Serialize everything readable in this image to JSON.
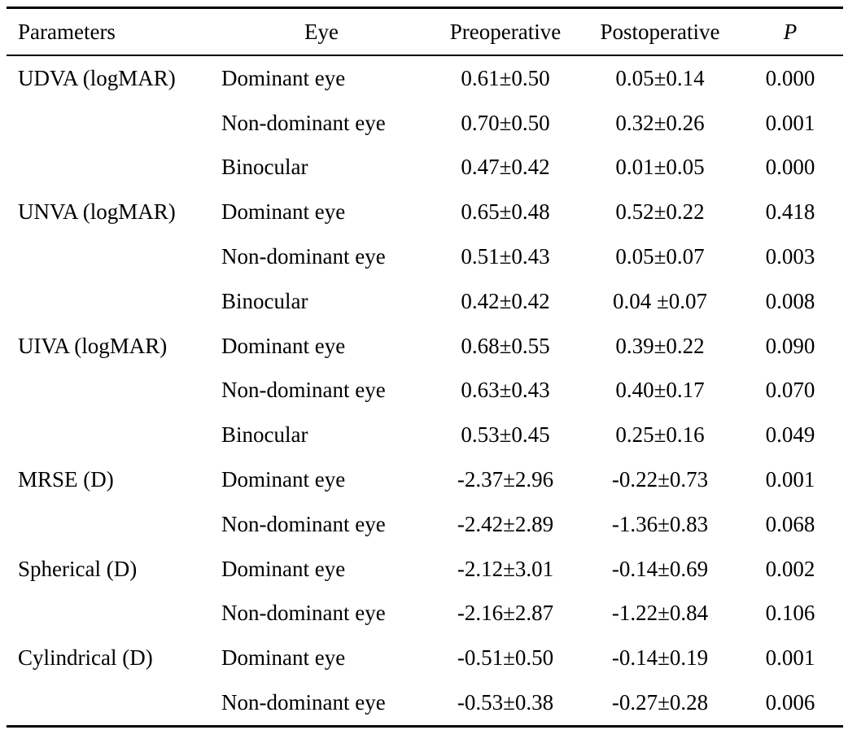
{
  "headers": {
    "parameters": "Parameters",
    "eye": "Eye",
    "preoperative": "Preoperative",
    "postoperative": "Postoperative",
    "p": "P"
  },
  "rows": [
    {
      "param": "UDVA (logMAR)",
      "eye": "Dominant eye",
      "pre": "0.61±0.50",
      "post": "0.05±0.14",
      "p": "0.000"
    },
    {
      "param": "",
      "eye": "Non-dominant eye",
      "pre": "0.70±0.50",
      "post": "0.32±0.26",
      "p": "0.001"
    },
    {
      "param": "",
      "eye": "Binocular",
      "pre": "0.47±0.42",
      "post": "0.01±0.05",
      "p": "0.000"
    },
    {
      "param": "UNVA (logMAR)",
      "eye": "Dominant eye",
      "pre": "0.65±0.48",
      "post": "0.52±0.22",
      "p": "0.418"
    },
    {
      "param": "",
      "eye": "Non-dominant eye",
      "pre": "0.51±0.43",
      "post": "0.05±0.07",
      "p": "0.003"
    },
    {
      "param": "",
      "eye": "Binocular",
      "pre": "0.42±0.42",
      "post": "0.04 ±0.07",
      "p": "0.008"
    },
    {
      "param": "UIVA (logMAR)",
      "eye": "Dominant eye",
      "pre": "0.68±0.55",
      "post": "0.39±0.22",
      "p": "0.090"
    },
    {
      "param": "",
      "eye": "Non-dominant eye",
      "pre": "0.63±0.43",
      "post": "0.40±0.17",
      "p": "0.070"
    },
    {
      "param": "",
      "eye": "Binocular",
      "pre": "0.53±0.45",
      "post": "0.25±0.16",
      "p": "0.049"
    },
    {
      "param": "MRSE (D)",
      "eye": "Dominant eye",
      "pre": "-2.37±2.96",
      "post": "-0.22±0.73",
      "p": "0.001"
    },
    {
      "param": "",
      "eye": "Non-dominant eye",
      "pre": "-2.42±2.89",
      "post": "-1.36±0.83",
      "p": "0.068"
    },
    {
      "param": "Spherical (D)",
      "eye": "Dominant eye",
      "pre": "-2.12±3.01",
      "post": "-0.14±0.69",
      "p": "0.002"
    },
    {
      "param": "",
      "eye": "Non-dominant eye",
      "pre": "-2.16±2.87",
      "post": "-1.22±0.84",
      "p": "0.106"
    },
    {
      "param": "Cylindrical (D)",
      "eye": "Dominant eye",
      "pre": "-0.51±0.50",
      "post": "-0.14±0.19",
      "p": "0.001"
    },
    {
      "param": "",
      "eye": "Non-dominant eye",
      "pre": "-0.53±0.38",
      "post": "-0.27±0.28",
      "p": "0.006"
    }
  ]
}
